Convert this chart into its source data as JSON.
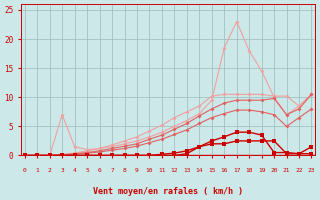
{
  "x": [
    0,
    1,
    2,
    3,
    4,
    5,
    6,
    7,
    8,
    9,
    10,
    11,
    12,
    13,
    14,
    15,
    16,
    17,
    18,
    19,
    20,
    21,
    22,
    23
  ],
  "light1": [
    0,
    0,
    0,
    7.0,
    1.5,
    1.0,
    1.2,
    1.5,
    2.0,
    2.5,
    3.2,
    4.0,
    5.0,
    6.0,
    7.2,
    9.5,
    18.5,
    23.0,
    18.0,
    14.5,
    10.0,
    7.0,
    8.5,
    10.5
  ],
  "light2": [
    0,
    0,
    0,
    0.2,
    0.4,
    0.8,
    1.2,
    1.8,
    2.5,
    3.2,
    4.2,
    5.2,
    6.5,
    7.5,
    8.5,
    10.2,
    10.5,
    10.5,
    10.5,
    10.5,
    10.2,
    10.2,
    8.5,
    10.5
  ],
  "mid1": [
    0,
    0,
    0,
    0.1,
    0.3,
    0.5,
    0.8,
    1.2,
    1.6,
    2.0,
    2.8,
    3.5,
    4.5,
    5.5,
    6.8,
    8.0,
    9.0,
    9.5,
    9.5,
    9.5,
    9.8,
    7.0,
    8.0,
    10.5
  ],
  "mid2": [
    0,
    0,
    0,
    0.1,
    0.2,
    0.4,
    0.6,
    0.9,
    1.2,
    1.6,
    2.2,
    2.8,
    3.6,
    4.4,
    5.5,
    6.5,
    7.2,
    7.8,
    7.8,
    7.5,
    7.0,
    5.0,
    6.5,
    8.0
  ],
  "dark1": [
    0,
    0,
    0,
    0,
    0,
    0,
    0,
    0,
    0,
    0,
    0,
    0.2,
    0.4,
    0.8,
    1.5,
    2.5,
    3.2,
    4.0,
    4.0,
    3.5,
    0.5,
    0.5,
    0.3,
    1.5
  ],
  "dark2": [
    0,
    0,
    0,
    0,
    0,
    0,
    0,
    0,
    0,
    0,
    0,
    0,
    0,
    0.3,
    1.5,
    2.0,
    2.0,
    2.5,
    2.5,
    2.5,
    2.5,
    0.3,
    0.3,
    0.3
  ],
  "bg_color": "#cce8e8",
  "grid_color": "#99bbbb",
  "color_light": "#f0a0a0",
  "color_mid": "#e06060",
  "color_dark": "#cc0000",
  "xlabel": "Vent moyen/en rafales ( km/h )",
  "xlim": [
    -0.3,
    23.3
  ],
  "ylim": [
    0,
    26
  ],
  "yticks": [
    0,
    5,
    10,
    15,
    20,
    25
  ],
  "xticks": [
    0,
    1,
    2,
    3,
    4,
    5,
    6,
    7,
    8,
    9,
    10,
    11,
    12,
    13,
    14,
    15,
    16,
    17,
    18,
    19,
    20,
    21,
    22,
    23
  ]
}
